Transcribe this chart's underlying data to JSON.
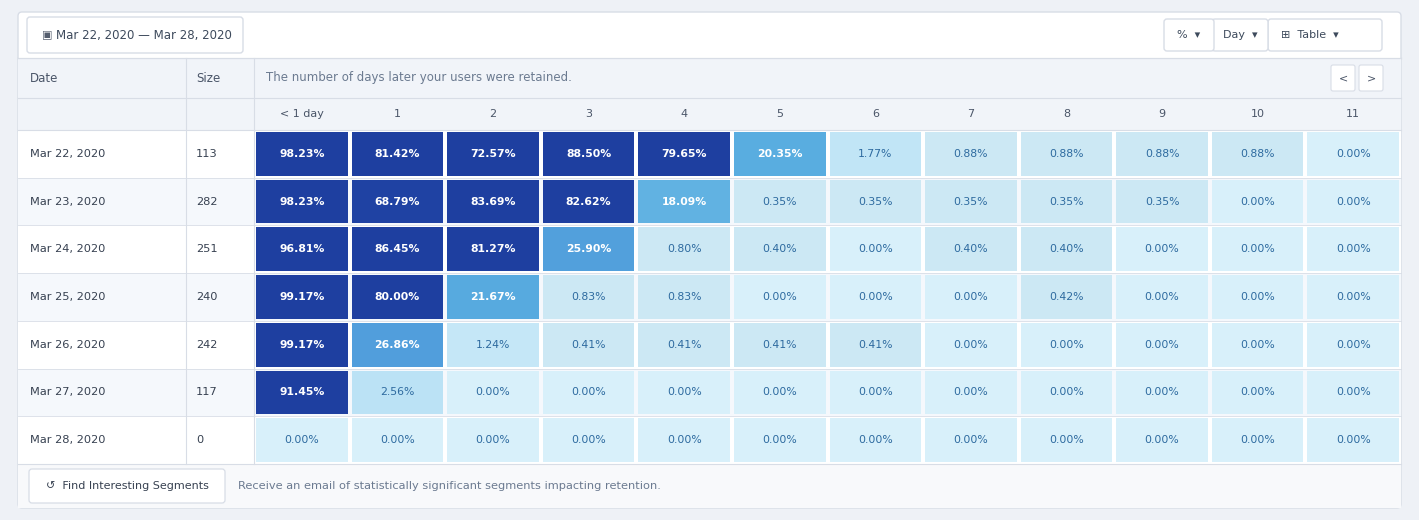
{
  "title_date_range": "Mar 22, 2020 — Mar 28, 2020",
  "header_text": "The number of days later your users were retained.",
  "col_headers": [
    "< 1 day",
    "1",
    "2",
    "3",
    "4",
    "5",
    "6",
    "7",
    "8",
    "9",
    "10",
    "11"
  ],
  "rows": [
    {
      "date": "Mar 22, 2020",
      "size": "113",
      "values": [
        "98.23%",
        "81.42%",
        "72.57%",
        "88.50%",
        "79.65%",
        "20.35%",
        "1.77%",
        "0.88%",
        "0.88%",
        "0.88%",
        "0.88%",
        "0.00%"
      ]
    },
    {
      "date": "Mar 23, 2020",
      "size": "282",
      "values": [
        "98.23%",
        "68.79%",
        "83.69%",
        "82.62%",
        "18.09%",
        "0.35%",
        "0.35%",
        "0.35%",
        "0.35%",
        "0.35%",
        "0.00%",
        "0.00%"
      ]
    },
    {
      "date": "Mar 24, 2020",
      "size": "251",
      "values": [
        "96.81%",
        "86.45%",
        "81.27%",
        "25.90%",
        "0.80%",
        "0.40%",
        "0.00%",
        "0.40%",
        "0.40%",
        "0.00%",
        "0.00%",
        "0.00%"
      ]
    },
    {
      "date": "Mar 25, 2020",
      "size": "240",
      "values": [
        "99.17%",
        "80.00%",
        "21.67%",
        "0.83%",
        "0.83%",
        "0.00%",
        "0.00%",
        "0.00%",
        "0.42%",
        "0.00%",
        "0.00%",
        "0.00%"
      ]
    },
    {
      "date": "Mar 26, 2020",
      "size": "242",
      "values": [
        "99.17%",
        "26.86%",
        "1.24%",
        "0.41%",
        "0.41%",
        "0.41%",
        "0.41%",
        "0.00%",
        "0.00%",
        "0.00%",
        "0.00%",
        "0.00%"
      ]
    },
    {
      "date": "Mar 27, 2020",
      "size": "117",
      "values": [
        "91.45%",
        "2.56%",
        "0.00%",
        "0.00%",
        "0.00%",
        "0.00%",
        "0.00%",
        "0.00%",
        "0.00%",
        "0.00%",
        "0.00%",
        "0.00%"
      ]
    },
    {
      "date": "Mar 28, 2020",
      "size": "0",
      "values": [
        "0.00%",
        "0.00%",
        "0.00%",
        "0.00%",
        "0.00%",
        "0.00%",
        "0.00%",
        "0.00%",
        "0.00%",
        "0.00%",
        "0.00%",
        "0.00%"
      ]
    }
  ],
  "bg_color": "#eef1f6",
  "card_color": "#ffffff",
  "header_bg": "#f1f4f9",
  "border_color": "#d8dde6",
  "footer_text": "Receive an email of statistically significant segments impacting retention.",
  "find_segments_text": "Find Interesting Segments",
  "cell_colors": [
    [
      "#1e3fa0",
      "#1e3fa0",
      "#1e3fa0",
      "#1e3fa0",
      "#1e3fa0",
      "#5aaee0",
      "#c8e8f4",
      "#c8e8f4",
      "#c8e8f4",
      "#c8e8f4",
      "#c8e8f4",
      "#d8f0fa"
    ],
    [
      "#1e3fa0",
      "#1e3fa0",
      "#1e3fa0",
      "#1e3fa0",
      "#4fb2e0",
      "#d0edf8",
      "#d0edf8",
      "#d0edf8",
      "#d0edf8",
      "#d0edf8",
      "#d8f0fa",
      "#d8f0fa"
    ],
    [
      "#1e3fa0",
      "#1e3fa0",
      "#1e3fa0",
      "#3daedd",
      "#d8f0fa",
      "#d0edf8",
      "#d8f0fa",
      "#d0edf8",
      "#d0edf8",
      "#d8f0fa",
      "#d8f0fa",
      "#d8f0fa"
    ],
    [
      "#1e3fa0",
      "#1e3fa0",
      "#4cb5e2",
      "#d8f0fa",
      "#d8f0fa",
      "#d8f0fa",
      "#d8f0fa",
      "#d8f0fa",
      "#d8f0fa",
      "#d8f0fa",
      "#d8f0fa",
      "#d8f0fa"
    ],
    [
      "#1e3fa0",
      "#35aede",
      "#d8f0fa",
      "#d8f0fa",
      "#d8f0fa",
      "#d8f0fa",
      "#d8f0fa",
      "#d8f0fa",
      "#d8f0fa",
      "#d8f0fa",
      "#d8f0fa",
      "#d8f0fa"
    ],
    [
      "#1e3fa0",
      "#d8f0fa",
      "#d8f0fa",
      "#d8f0fa",
      "#d8f0fa",
      "#d8f0fa",
      "#d8f0fa",
      "#d8f0fa",
      "#d8f0fa",
      "#d8f0fa",
      "#d8f0fa",
      "#d8f0fa"
    ],
    [
      "#d8f0fa",
      "#d8f0fa",
      "#d8f0fa",
      "#d8f0fa",
      "#d8f0fa",
      "#d8f0fa",
      "#d8f0fa",
      "#d8f0fa",
      "#d8f0fa",
      "#d8f0fa",
      "#d8f0fa",
      "#d8f0fa"
    ]
  ]
}
